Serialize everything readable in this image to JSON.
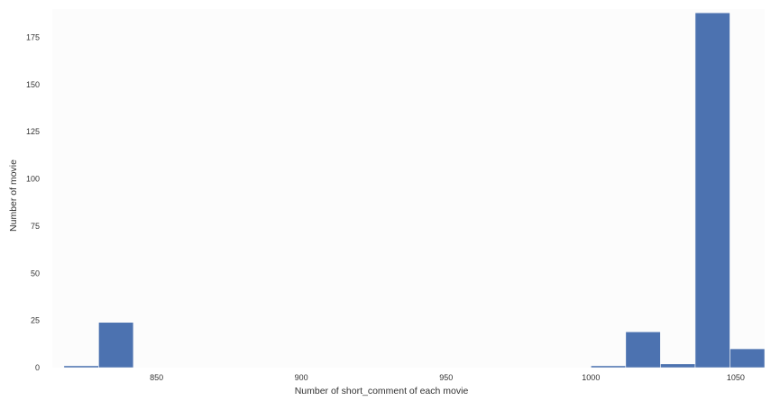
{
  "chart_data": {
    "type": "bar",
    "title": "",
    "xlabel": "Number of short_comment of each movie",
    "ylabel": "Number of movie",
    "xlim": [
      814,
      1060
    ],
    "ylim": [
      0,
      190
    ],
    "xticks": [
      850,
      900,
      950,
      1000,
      1050
    ],
    "yticks": [
      0,
      25,
      50,
      75,
      100,
      125,
      150,
      175
    ],
    "grid": false,
    "bar_color": "#4c72b0",
    "background_color": "#fcfcfc",
    "bins": [
      {
        "x0": 818,
        "x1": 830,
        "value": 1
      },
      {
        "x0": 830,
        "x1": 842,
        "value": 24
      },
      {
        "x0": 1000,
        "x1": 1012,
        "value": 1
      },
      {
        "x0": 1012,
        "x1": 1024,
        "value": 19
      },
      {
        "x0": 1024,
        "x1": 1036,
        "value": 2
      },
      {
        "x0": 1036,
        "x1": 1048,
        "value": 188
      },
      {
        "x0": 1048,
        "x1": 1060,
        "value": 10
      }
    ]
  }
}
